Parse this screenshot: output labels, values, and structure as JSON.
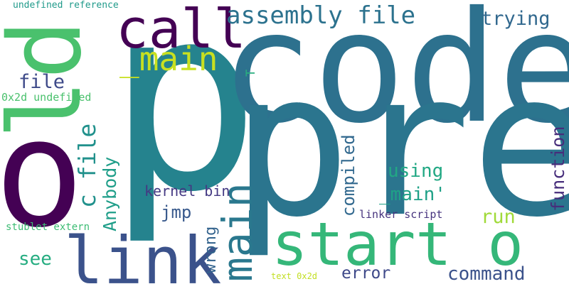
{
  "words": [
    {
      "key": "p",
      "text": "p",
      "color": "#25838e"
    },
    {
      "key": "code",
      "text": "code",
      "color": "#2d718e"
    },
    {
      "key": "pre",
      "text": "pre",
      "color": "#2b758e"
    },
    {
      "key": "o_large",
      "text": "o",
      "color": "#440154"
    },
    {
      "key": "ld",
      "text": "ld",
      "color": "#4ac16d"
    },
    {
      "key": "call",
      "text": "call",
      "color": "#440154"
    },
    {
      "key": "link",
      "text": "link",
      "color": "#3b528b"
    },
    {
      "key": "start_o",
      "text": "start o",
      "color": "#35b779"
    },
    {
      "key": "main",
      "text": "main",
      "color": "#2a788e"
    },
    {
      "key": "main_underscore",
      "text": "_main",
      "color": "#c8e020"
    },
    {
      "key": "assembly_file",
      "text": "assembly file",
      "color": "#2c728e"
    },
    {
      "key": "trying",
      "text": "trying",
      "color": "#31688e"
    },
    {
      "key": "file",
      "text": "file",
      "color": "#3e4a89"
    },
    {
      "key": "c_file",
      "text": "c file",
      "color": "#21918c"
    },
    {
      "key": "anybody",
      "text": "Anybody",
      "color": "#1f9e89"
    },
    {
      "key": "function",
      "text": "function",
      "color": "#472d7b"
    },
    {
      "key": "compiled",
      "text": "compiled",
      "color": "#31688e"
    },
    {
      "key": "using",
      "text": "using",
      "color": "#22a884"
    },
    {
      "key": "main_quote",
      "text": "_main'",
      "color": "#1fa187"
    },
    {
      "key": "kernel_bin",
      "text": "kernel bin",
      "color": "#443983"
    },
    {
      "key": "jmp",
      "text": "jmp",
      "color": "#38598c"
    },
    {
      "key": "wrong",
      "text": "wrong",
      "color": "#33638d"
    },
    {
      "key": "run",
      "text": "run",
      "color": "#a0da39"
    },
    {
      "key": "error",
      "text": "error",
      "color": "#3e4989"
    },
    {
      "key": "command",
      "text": "command",
      "color": "#3b528b"
    },
    {
      "key": "see",
      "text": "see",
      "color": "#26ad81"
    },
    {
      "key": "undefined_reference",
      "text": "undefined reference",
      "color": "#1f9a8a"
    },
    {
      "key": "hex_undefined",
      "text": "0x2d undefined",
      "color": "#4ac16d"
    },
    {
      "key": "stublet_extern",
      "text": "stublet extern",
      "color": "#3dbc74"
    },
    {
      "key": "linker_script",
      "text": "linker script",
      "color": "#46337e"
    },
    {
      "key": "text_hex",
      "text": "text 0x2d",
      "color": "#c2df23"
    },
    {
      "key": "t",
      "text": "T",
      "color": "#29af7f"
    }
  ]
}
